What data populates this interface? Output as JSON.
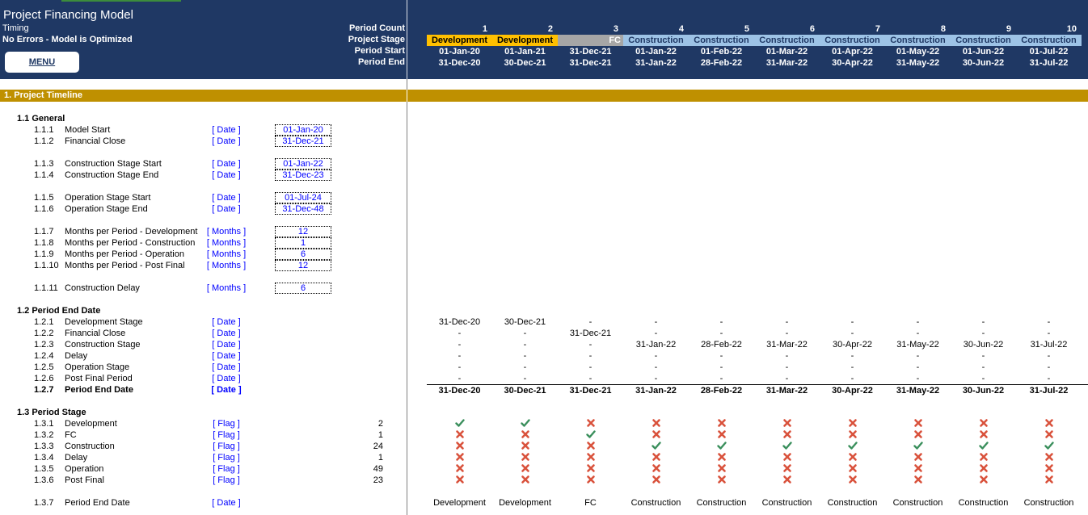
{
  "header": {
    "title": "Project Financing Model",
    "timing": "Timing",
    "status": "No Errors - Model is Optimized",
    "menu_label": "MENU",
    "row_labels": [
      "Period Count",
      "Project Stage",
      "Period Start",
      "Period End"
    ]
  },
  "periods": [
    {
      "count": "1",
      "stage": "Development",
      "stage_type": "dev",
      "start": "01-Jan-20",
      "end": "31-Dec-20"
    },
    {
      "count": "2",
      "stage": "Development",
      "stage_type": "dev",
      "start": "01-Jan-21",
      "end": "30-Dec-21"
    },
    {
      "count": "3",
      "stage": "FC",
      "stage_type": "fc",
      "start": "31-Dec-21",
      "end": "31-Dec-21"
    },
    {
      "count": "4",
      "stage": "Construction",
      "stage_type": "con",
      "start": "01-Jan-22",
      "end": "31-Jan-22"
    },
    {
      "count": "5",
      "stage": "Construction",
      "stage_type": "con",
      "start": "01-Feb-22",
      "end": "28-Feb-22"
    },
    {
      "count": "6",
      "stage": "Construction",
      "stage_type": "con",
      "start": "01-Mar-22",
      "end": "31-Mar-22"
    },
    {
      "count": "7",
      "stage": "Construction",
      "stage_type": "con",
      "start": "01-Apr-22",
      "end": "30-Apr-22"
    },
    {
      "count": "8",
      "stage": "Construction",
      "stage_type": "con",
      "start": "01-May-22",
      "end": "31-May-22"
    },
    {
      "count": "9",
      "stage": "Construction",
      "stage_type": "con",
      "start": "01-Jun-22",
      "end": "30-Jun-22"
    },
    {
      "count": "10",
      "stage": "Construction",
      "stage_type": "con",
      "start": "01-Jul-22",
      "end": "31-Jul-22"
    }
  ],
  "section": {
    "title": "1.  Project Timeline"
  },
  "general": {
    "title": "1.1  General",
    "rows": [
      {
        "num": "1.1.1",
        "label": "Model Start",
        "unit": "[ Date ]",
        "value": "01-Jan-20"
      },
      {
        "num": "1.1.2",
        "label": "Financial Close",
        "unit": "[ Date ]",
        "value": "31-Dec-21"
      },
      {
        "num": "1.1.3",
        "label": "Construction Stage Start",
        "unit": "[ Date ]",
        "value": "01-Jan-22"
      },
      {
        "num": "1.1.4",
        "label": "Construction Stage End",
        "unit": "[ Date ]",
        "value": "31-Dec-23"
      },
      {
        "num": "1.1.5",
        "label": "Operation Stage Start",
        "unit": "[ Date ]",
        "value": "01-Jul-24"
      },
      {
        "num": "1.1.6",
        "label": "Operation Stage End",
        "unit": "[ Date ]",
        "value": "31-Dec-48"
      },
      {
        "num": "1.1.7",
        "label": "Months per Period - Development",
        "unit": "[ Months ]",
        "value": "12"
      },
      {
        "num": "1.1.8",
        "label": "Months per Period - Construction",
        "unit": "[ Months ]",
        "value": "1"
      },
      {
        "num": "1.1.9",
        "label": "Months per Period - Operation",
        "unit": "[ Months ]",
        "value": "6"
      },
      {
        "num": "1.1.10",
        "label": "Months per Period - Post Final",
        "unit": "[ Months ]",
        "value": "12"
      },
      {
        "num": "1.1.11",
        "label": "Construction Delay",
        "unit": "[ Months ]",
        "value": "6"
      }
    ]
  },
  "period_end": {
    "title": "1.2  Period End Date",
    "rows": [
      {
        "num": "1.2.1",
        "label": "Development Stage",
        "unit": "[ Date ]",
        "values": [
          "31-Dec-20",
          "30-Dec-21",
          "-",
          "-",
          "-",
          "-",
          "-",
          "-",
          "-",
          "-"
        ]
      },
      {
        "num": "1.2.2",
        "label": "Financial Close",
        "unit": "[ Date ]",
        "values": [
          "-",
          "-",
          "31-Dec-21",
          "-",
          "-",
          "-",
          "-",
          "-",
          "-",
          "-"
        ]
      },
      {
        "num": "1.2.3",
        "label": "Construction Stage",
        "unit": "[ Date ]",
        "values": [
          "-",
          "-",
          "-",
          "31-Jan-22",
          "28-Feb-22",
          "31-Mar-22",
          "30-Apr-22",
          "31-May-22",
          "30-Jun-22",
          "31-Jul-22"
        ]
      },
      {
        "num": "1.2.4",
        "label": "Delay",
        "unit": "[ Date ]",
        "values": [
          "-",
          "-",
          "-",
          "-",
          "-",
          "-",
          "-",
          "-",
          "-",
          "-"
        ]
      },
      {
        "num": "1.2.5",
        "label": "Operation Stage",
        "unit": "[ Date ]",
        "values": [
          "-",
          "-",
          "-",
          "-",
          "-",
          "-",
          "-",
          "-",
          "-",
          "-"
        ]
      },
      {
        "num": "1.2.6",
        "label": "Post Final Period",
        "unit": "[ Date ]",
        "values": [
          "-",
          "-",
          "-",
          "-",
          "-",
          "-",
          "-",
          "-",
          "-",
          "-"
        ]
      },
      {
        "num": "1.2.7",
        "label": "Period End Date",
        "unit": "[ Date ]",
        "values": [
          "31-Dec-20",
          "30-Dec-21",
          "31-Dec-21",
          "31-Jan-22",
          "28-Feb-22",
          "31-Mar-22",
          "30-Apr-22",
          "31-May-22",
          "30-Jun-22",
          "31-Jul-22"
        ]
      }
    ]
  },
  "period_stage": {
    "title": "1.3  Period Stage",
    "colors": {
      "check": "#3a8f5c",
      "cross": "#d9523c"
    },
    "rows": [
      {
        "num": "1.3.1",
        "label": "Development",
        "unit": "[ Flag ]",
        "total": "2",
        "flags": [
          1,
          1,
          0,
          0,
          0,
          0,
          0,
          0,
          0,
          0
        ]
      },
      {
        "num": "1.3.2",
        "label": "FC",
        "unit": "[ Flag ]",
        "total": "1",
        "flags": [
          0,
          0,
          1,
          0,
          0,
          0,
          0,
          0,
          0,
          0
        ]
      },
      {
        "num": "1.3.3",
        "label": "Construction",
        "unit": "[ Flag ]",
        "total": "24",
        "flags": [
          0,
          0,
          0,
          1,
          1,
          1,
          1,
          1,
          1,
          1
        ]
      },
      {
        "num": "1.3.4",
        "label": "Delay",
        "unit": "[ Flag ]",
        "total": "1",
        "flags": [
          0,
          0,
          0,
          0,
          0,
          0,
          0,
          0,
          0,
          0
        ]
      },
      {
        "num": "1.3.5",
        "label": "Operation",
        "unit": "[ Flag ]",
        "total": "49",
        "flags": [
          0,
          0,
          0,
          0,
          0,
          0,
          0,
          0,
          0,
          0
        ]
      },
      {
        "num": "1.3.6",
        "label": "Post Final",
        "unit": "[ Flag ]",
        "total": "23",
        "flags": [
          0,
          0,
          0,
          0,
          0,
          0,
          0,
          0,
          0,
          0
        ]
      }
    ],
    "end_row": {
      "num": "1.3.7",
      "label": "Period End Date",
      "unit": "[ Date ]",
      "values": [
        "Development",
        "Development",
        "FC",
        "Construction",
        "Construction",
        "Construction",
        "Construction",
        "Construction",
        "Construction",
        "Construction"
      ]
    }
  }
}
